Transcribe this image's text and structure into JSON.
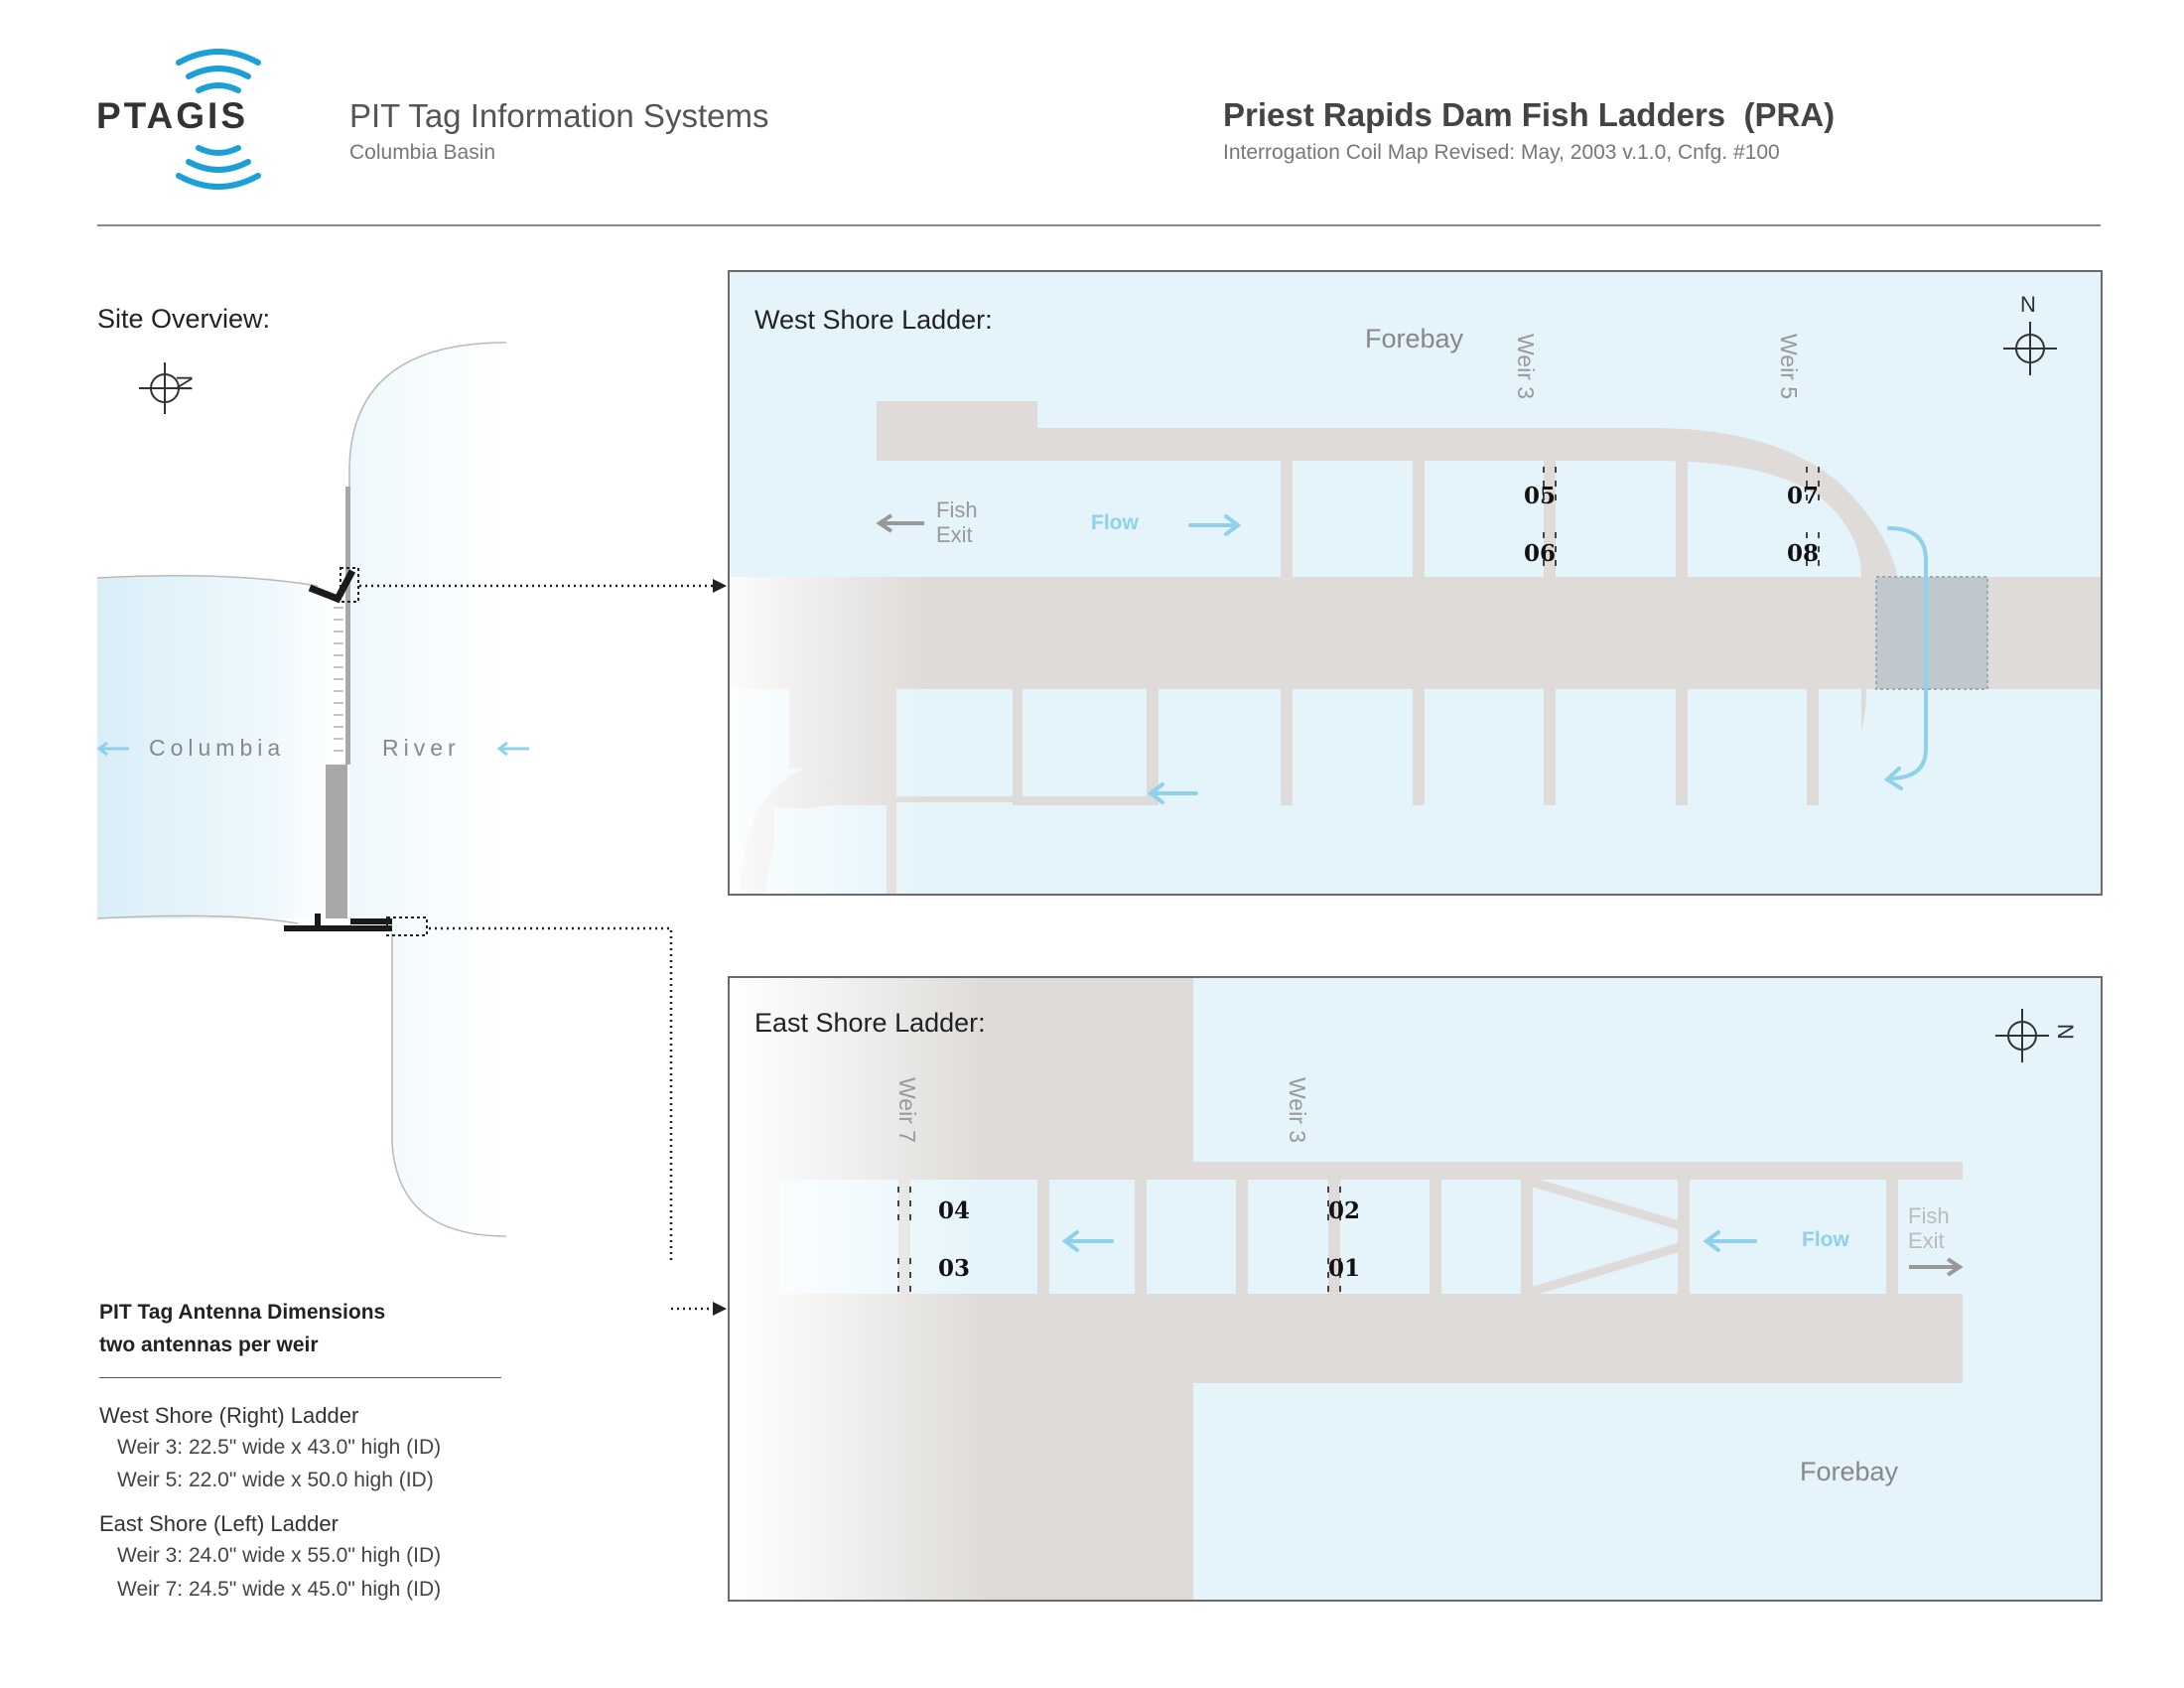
{
  "header": {
    "logo_text": "PTAGIS",
    "org_title": "PIT Tag Information Systems",
    "org_subtitle": "Columbia Basin",
    "site_title": "Priest Rapids Dam Fish Ladders  (PRA)",
    "site_subtitle": "Interrogation Coil Map Revised: May, 2003 v.1.0, Cnfg. #100"
  },
  "overview": {
    "title": "Site Overview:",
    "north": "N",
    "river_left": "Columbia",
    "river_right": "River"
  },
  "west": {
    "title": "West Shore Ladder:",
    "forebay": "Forebay",
    "north": "N",
    "weir_a": "Weir 3",
    "weir_b": "Weir 5",
    "fish_exit_1": "Fish",
    "fish_exit_2": "Exit",
    "flow": "Flow",
    "coils": [
      "05",
      "06",
      "07",
      "08"
    ]
  },
  "east": {
    "title": "East Shore Ladder:",
    "forebay": "Forebay",
    "north": "N",
    "weir_a": "Weir 7",
    "weir_b": "Weir 3",
    "fish_exit_1": "Fish",
    "fish_exit_2": "Exit",
    "flow": "Flow",
    "coils": [
      "04",
      "03",
      "02",
      "01"
    ]
  },
  "dimensions": {
    "title_1": "PIT Tag Antenna Dimensions",
    "title_2": "two antennas per weir",
    "west_heading": "West Shore (Right) Ladder",
    "west_lines": [
      "Weir 3: 22.5\" wide x 43.0\" high (ID)",
      "Weir 5: 22.0\" wide x 50.0 high (ID)"
    ],
    "east_heading": "East Shore (Left) Ladder",
    "east_lines": [
      "Weir 3: 24.0\" wide x 55.0\" high (ID)",
      "Weir 7: 24.5\" wide x 45.0\" high (ID)"
    ]
  },
  "colors": {
    "water": "#e4f4fa",
    "structure": "#dedbd8",
    "flow_arrow": "#8fd1ea",
    "dam": "#a8a8a8"
  }
}
